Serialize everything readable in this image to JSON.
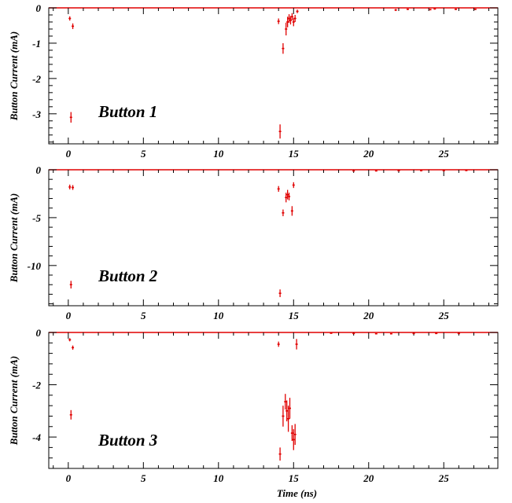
{
  "chart_data": [
    {
      "type": "scatter",
      "annotation": "Button 1",
      "ylabel": "Button Current (mA)",
      "xlabel": "",
      "xlim": [
        -1.3,
        28.6
      ],
      "ylim": [
        -3.85,
        0
      ],
      "xticks": [
        0,
        5,
        10,
        15,
        20,
        25
      ],
      "yticks": [
        0,
        -1,
        -2,
        -3
      ],
      "ytick_labels": [
        "0",
        "-1",
        "-2",
        "-3"
      ],
      "color": "#e00000",
      "points": [
        {
          "x": 0.1,
          "y": -0.3,
          "e": 0.06
        },
        {
          "x": 0.3,
          "y": -0.52,
          "e": 0.08
        },
        {
          "x": 0.18,
          "y": -3.1,
          "e": 0.15
        },
        {
          "x": 14.0,
          "y": -0.38,
          "e": 0.08
        },
        {
          "x": 14.1,
          "y": -3.5,
          "e": 0.2
        },
        {
          "x": 14.3,
          "y": -1.15,
          "e": 0.15
        },
        {
          "x": 14.5,
          "y": -0.6,
          "e": 0.18
        },
        {
          "x": 14.6,
          "y": -0.4,
          "e": 0.15
        },
        {
          "x": 14.7,
          "y": -0.3,
          "e": 0.12
        },
        {
          "x": 14.8,
          "y": -0.35,
          "e": 0.12
        },
        {
          "x": 14.9,
          "y": -0.25,
          "e": 0.1
        },
        {
          "x": 15.0,
          "y": -0.4,
          "e": 0.12
        },
        {
          "x": 15.1,
          "y": -0.3,
          "e": 0.1
        },
        {
          "x": 15.25,
          "y": -0.1,
          "e": 0.05
        },
        {
          "x": 21.8,
          "y": -0.06,
          "e": 0.03
        },
        {
          "x": 22.6,
          "y": -0.04,
          "e": 0.02
        },
        {
          "x": 24.1,
          "y": -0.05,
          "e": 0.02
        },
        {
          "x": 24.4,
          "y": -0.03,
          "e": 0.02
        },
        {
          "x": 25.8,
          "y": -0.04,
          "e": 0.02
        },
        {
          "x": 27.1,
          "y": -0.04,
          "e": 0.02
        }
      ]
    },
    {
      "type": "scatter",
      "annotation": "Button 2",
      "ylabel": "Button Current (mA)",
      "xlabel": "",
      "xlim": [
        -1.3,
        28.6
      ],
      "ylim": [
        -14.2,
        0
      ],
      "xticks": [
        0,
        5,
        10,
        15,
        20,
        25
      ],
      "yticks": [
        0,
        -5,
        -10
      ],
      "ytick_labels": [
        "0",
        "-5",
        "-10"
      ],
      "color": "#e00000",
      "points": [
        {
          "x": 0.1,
          "y": -1.8,
          "e": 0.25
        },
        {
          "x": 0.3,
          "y": -1.85,
          "e": 0.25
        },
        {
          "x": 0.18,
          "y": -12.0,
          "e": 0.4
        },
        {
          "x": 14.0,
          "y": -2.0,
          "e": 0.3
        },
        {
          "x": 14.1,
          "y": -12.9,
          "e": 0.4
        },
        {
          "x": 14.3,
          "y": -4.5,
          "e": 0.35
        },
        {
          "x": 14.5,
          "y": -2.9,
          "e": 0.5
        },
        {
          "x": 14.6,
          "y": -2.6,
          "e": 0.5
        },
        {
          "x": 14.7,
          "y": -2.8,
          "e": 0.4
        },
        {
          "x": 14.9,
          "y": -4.3,
          "e": 0.5
        },
        {
          "x": 15.0,
          "y": -1.6,
          "e": 0.3
        },
        {
          "x": 19.0,
          "y": -0.12,
          "e": 0.05
        },
        {
          "x": 20.5,
          "y": -0.12,
          "e": 0.05
        },
        {
          "x": 22.0,
          "y": -0.1,
          "e": 0.04
        },
        {
          "x": 23.5,
          "y": -0.1,
          "e": 0.04
        },
        {
          "x": 25.0,
          "y": -0.1,
          "e": 0.04
        },
        {
          "x": 26.5,
          "y": -0.08,
          "e": 0.04
        }
      ]
    },
    {
      "type": "scatter",
      "annotation": "Button 3",
      "ylabel": "Button Current (mA)",
      "xlabel": "Time (ns)",
      "xlim": [
        -1.3,
        28.6
      ],
      "ylim": [
        -5.2,
        0
      ],
      "xticks": [
        0,
        5,
        10,
        15,
        20,
        25
      ],
      "xtick_labels": [
        "0",
        "5",
        "10",
        "15",
        "20",
        "25"
      ],
      "yticks": [
        0,
        -2,
        -4
      ],
      "ytick_labels": [
        "0",
        "-2",
        "-4"
      ],
      "color": "#e00000",
      "points": [
        {
          "x": 0.1,
          "y": -0.28,
          "e": 0.06
        },
        {
          "x": 0.3,
          "y": -0.58,
          "e": 0.08
        },
        {
          "x": 0.18,
          "y": -3.15,
          "e": 0.18
        },
        {
          "x": 14.0,
          "y": -0.45,
          "e": 0.1
        },
        {
          "x": 14.1,
          "y": -4.65,
          "e": 0.25
        },
        {
          "x": 14.3,
          "y": -3.2,
          "e": 0.4
        },
        {
          "x": 14.45,
          "y": -2.65,
          "e": 0.3
        },
        {
          "x": 14.55,
          "y": -3.0,
          "e": 0.4
        },
        {
          "x": 14.65,
          "y": -3.3,
          "e": 0.5
        },
        {
          "x": 14.75,
          "y": -2.9,
          "e": 0.4
        },
        {
          "x": 14.9,
          "y": -3.85,
          "e": 0.3
        },
        {
          "x": 15.0,
          "y": -4.1,
          "e": 0.4
        },
        {
          "x": 15.1,
          "y": -3.9,
          "e": 0.4
        },
        {
          "x": 15.2,
          "y": -0.45,
          "e": 0.2
        },
        {
          "x": 17.5,
          "y": -0.03,
          "e": 0.02
        },
        {
          "x": 19.0,
          "y": -0.04,
          "e": 0.02
        },
        {
          "x": 20.5,
          "y": -0.05,
          "e": 0.02
        },
        {
          "x": 21.5,
          "y": -0.05,
          "e": 0.02
        },
        {
          "x": 23.0,
          "y": -0.04,
          "e": 0.02
        },
        {
          "x": 24.5,
          "y": -0.04,
          "e": 0.02
        },
        {
          "x": 26.0,
          "y": -0.04,
          "e": 0.02
        }
      ]
    }
  ]
}
